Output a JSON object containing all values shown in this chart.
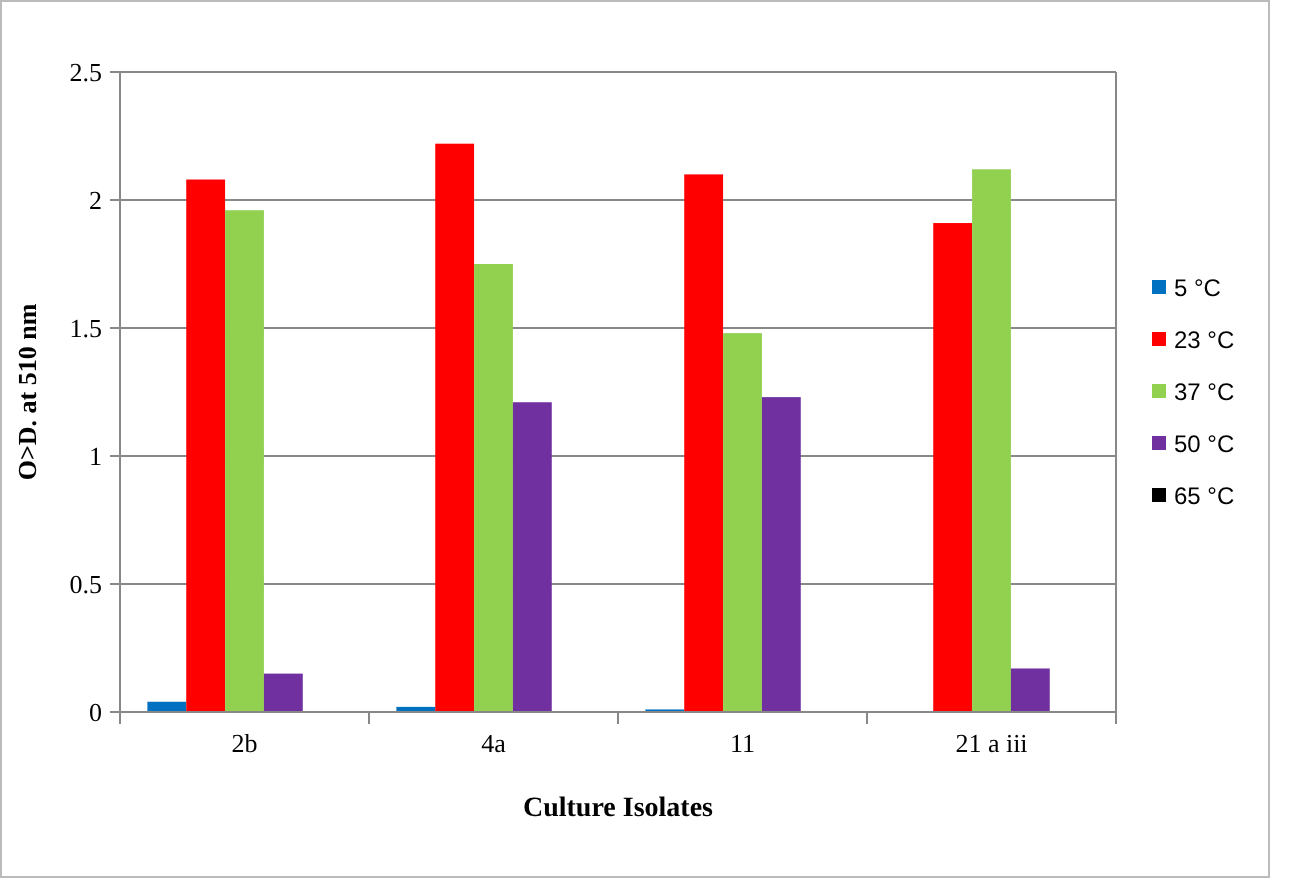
{
  "chart_data": {
    "type": "bar",
    "xlabel": "Culture Isolates",
    "ylabel": "O>D. at 510 nm",
    "categories": [
      "2b",
      "4a",
      "11",
      "21 a iii"
    ],
    "series": [
      {
        "name": "5 °C",
        "color": "#0070c0",
        "values": [
          0.04,
          0.02,
          0.01,
          0
        ]
      },
      {
        "name": "23 °C",
        "color": "#ff0000",
        "values": [
          2.08,
          2.22,
          2.1,
          1.91
        ]
      },
      {
        "name": "37 °C",
        "color": "#92d050",
        "values": [
          1.96,
          1.75,
          1.48,
          2.12
        ]
      },
      {
        "name": "50 °C",
        "color": "#7030a0",
        "values": [
          0.15,
          1.21,
          1.23,
          0.17
        ]
      },
      {
        "name": "65 °C",
        "color": "#000000",
        "values": [
          0,
          0,
          0,
          0
        ]
      }
    ],
    "ylim": [
      0,
      2.5
    ],
    "yticks": [
      0,
      0.5,
      1,
      1.5,
      2,
      2.5
    ],
    "grid": "y",
    "legend": "right"
  }
}
